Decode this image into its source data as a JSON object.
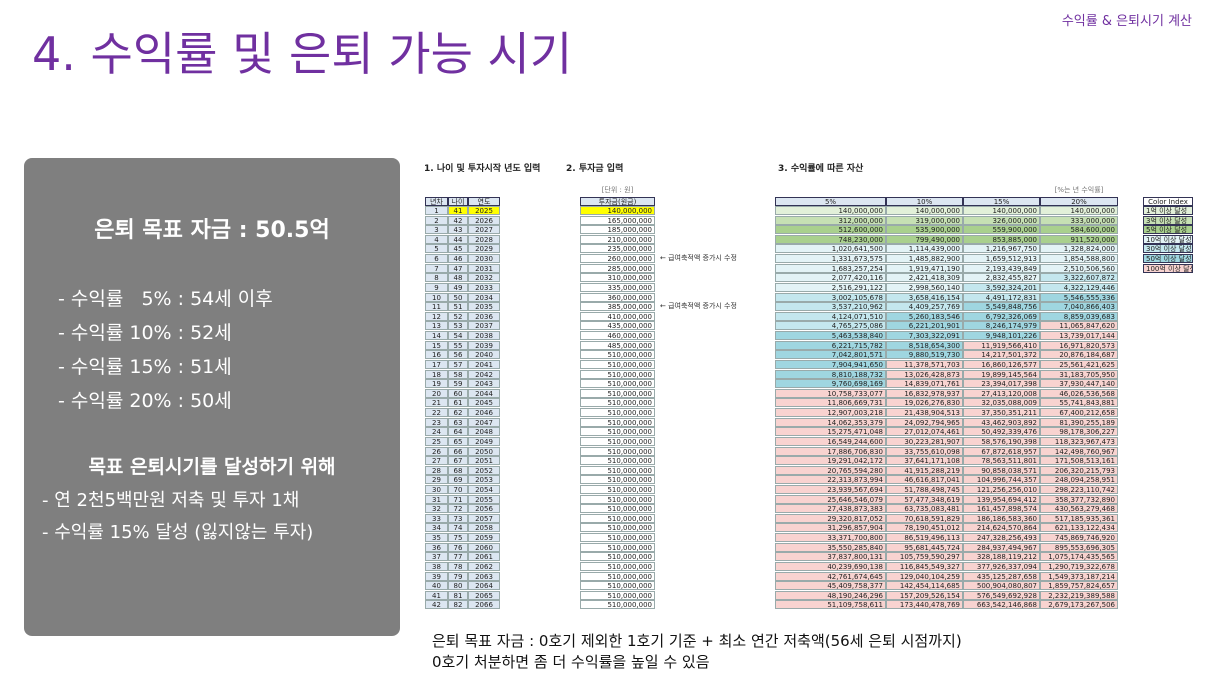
{
  "header": {
    "title": "4. 수익률 및 은퇴 가능 시기",
    "tag": "수익률 & 은퇴시기 계산"
  },
  "summary": {
    "goal": "은퇴 목표 자금 : 50.5억",
    "rates": [
      "- 수익률   5% : 54세 이후",
      "- 수익률 10% : 52세",
      "- 수익률 15% : 51세",
      "- 수익률 20% : 50세"
    ],
    "plan_title": "목표 은퇴시기를 달성하기 위해",
    "plan": [
      "- 연 2천5백만원 저축 및 투자 1채",
      "- 수익률 15% 달성 (잃지않는 투자)"
    ]
  },
  "sheet": {
    "section1": "1. 나이 및 투자시작 년도 입력",
    "section2": "2. 투자금 입력",
    "section3": "3. 수익률에 따른 자산",
    "unit_note": "[단위 : 원]",
    "rate_note": "[%는 년 수익률]",
    "columns": [
      "년차",
      "나이",
      "연도",
      "투자금(원금)",
      "5%",
      "10%",
      "15%",
      "20%"
    ],
    "rows": [
      [
        1,
        41,
        2025,
        "140,000,000",
        "140,000,000",
        "140,000,000",
        "140,000,000",
        "140,000,000"
      ],
      [
        2,
        42,
        2026,
        "165,000,000",
        "312,000,000",
        "319,000,000",
        "326,000,000",
        "333,000,000"
      ],
      [
        3,
        43,
        2027,
        "185,000,000",
        "512,600,000",
        "535,900,000",
        "559,900,000",
        "584,600,000"
      ],
      [
        4,
        44,
        2028,
        "210,000,000",
        "748,230,000",
        "799,490,000",
        "853,885,000",
        "911,520,000"
      ],
      [
        5,
        45,
        2029,
        "235,000,000",
        "1,020,641,500",
        "1,114,439,000",
        "1,216,967,750",
        "1,328,824,000"
      ],
      [
        6,
        46,
        2030,
        "260,000,000",
        "1,331,673,575",
        "1,485,882,900",
        "1,659,512,913",
        "1,854,588,800",
        "← 급여축적액 증가시 수정"
      ],
      [
        7,
        47,
        2031,
        "285,000,000",
        "1,683,257,254",
        "1,919,471,190",
        "2,193,439,849",
        "2,510,506,560"
      ],
      [
        8,
        48,
        2032,
        "310,000,000",
        "2,077,420,116",
        "2,421,418,309",
        "2,832,455,827",
        "3,322,607,872"
      ],
      [
        9,
        49,
        2033,
        "335,000,000",
        "2,516,291,122",
        "2,998,560,140",
        "3,592,324,201",
        "4,322,129,446"
      ],
      [
        10,
        50,
        2034,
        "360,000,000",
        "3,002,105,678",
        "3,658,416,154",
        "4,491,172,831",
        "5,546,555,336"
      ],
      [
        11,
        51,
        2035,
        "385,000,000",
        "3,537,210,962",
        "4,409,257,769",
        "5,549,848,756",
        "7,040,866,403",
        "← 급여축적액 증가시 수정"
      ],
      [
        12,
        52,
        2036,
        "410,000,000",
        "4,124,071,510",
        "5,260,183,546",
        "6,792,326,069",
        "8,859,039,683"
      ],
      [
        13,
        53,
        2037,
        "435,000,000",
        "4,765,275,086",
        "6,221,201,901",
        "8,246,174,979",
        "11,065,847,620"
      ],
      [
        14,
        54,
        2038,
        "460,000,000",
        "5,463,538,840",
        "7,303,322,091",
        "9,948,101,226",
        "13,739,017,144"
      ],
      [
        15,
        55,
        2039,
        "485,000,000",
        "6,221,715,782",
        "8,518,654,300",
        "11,919,566,410",
        "16,971,820,573"
      ],
      [
        16,
        56,
        2040,
        "510,000,000",
        "7,042,801,571",
        "9,880,519,730",
        "14,217,501,372",
        "20,876,184,687"
      ],
      [
        17,
        57,
        2041,
        "510,000,000",
        "7,904,941,650",
        "11,378,571,703",
        "16,860,126,577",
        "25,561,421,625"
      ],
      [
        18,
        58,
        2042,
        "510,000,000",
        "8,810,188,732",
        "13,026,428,873",
        "19,899,145,564",
        "31,183,705,950"
      ],
      [
        19,
        59,
        2043,
        "510,000,000",
        "9,760,698,169",
        "14,839,071,761",
        "23,394,017,398",
        "37,930,447,140"
      ],
      [
        20,
        60,
        2044,
        "510,000,000",
        "10,758,733,077",
        "16,832,978,937",
        "27,413,120,008",
        "46,026,536,568"
      ],
      [
        21,
        61,
        2045,
        "510,000,000",
        "11,806,669,731",
        "19,026,276,830",
        "32,035,088,009",
        "55,741,843,881"
      ],
      [
        22,
        62,
        2046,
        "510,000,000",
        "12,907,003,218",
        "21,438,904,513",
        "37,350,351,211",
        "67,400,212,658"
      ],
      [
        23,
        63,
        2047,
        "510,000,000",
        "14,062,353,379",
        "24,092,794,965",
        "43,462,903,892",
        "81,390,255,189"
      ],
      [
        24,
        64,
        2048,
        "510,000,000",
        "15,275,471,048",
        "27,012,074,461",
        "50,492,339,476",
        "98,178,306,227"
      ],
      [
        25,
        65,
        2049,
        "510,000,000",
        "16,549,244,600",
        "30,223,281,907",
        "58,576,190,398",
        "118,323,967,473"
      ],
      [
        26,
        66,
        2050,
        "510,000,000",
        "17,886,706,830",
        "33,755,610,098",
        "67,872,618,957",
        "142,498,760,967"
      ],
      [
        27,
        67,
        2051,
        "510,000,000",
        "19,291,042,172",
        "37,641,171,108",
        "78,563,511,801",
        "171,508,513,161"
      ],
      [
        28,
        68,
        2052,
        "510,000,000",
        "20,765,594,280",
        "41,915,288,219",
        "90,858,038,571",
        "206,320,215,793"
      ],
      [
        29,
        69,
        2053,
        "510,000,000",
        "22,313,873,994",
        "46,616,817,041",
        "104,996,744,357",
        "248,094,258,951"
      ],
      [
        30,
        70,
        2054,
        "510,000,000",
        "23,939,567,694",
        "51,788,498,745",
        "121,256,256,010",
        "298,223,110,742"
      ],
      [
        31,
        71,
        2055,
        "510,000,000",
        "25,646,546,079",
        "57,477,348,619",
        "139,954,694,412",
        "358,377,732,890"
      ],
      [
        32,
        72,
        2056,
        "510,000,000",
        "27,438,873,383",
        "63,735,083,481",
        "161,457,898,574",
        "430,563,279,468"
      ],
      [
        33,
        73,
        2057,
        "510,000,000",
        "29,320,817,052",
        "70,618,591,829",
        "186,186,583,360",
        "517,185,935,361"
      ],
      [
        34,
        74,
        2058,
        "510,000,000",
        "31,296,857,904",
        "78,190,451,012",
        "214,624,570,864",
        "621,133,122,434"
      ],
      [
        35,
        75,
        2059,
        "510,000,000",
        "33,371,700,800",
        "86,519,496,113",
        "247,328,256,493",
        "745,869,746,920"
      ],
      [
        36,
        76,
        2060,
        "510,000,000",
        "35,550,285,840",
        "95,681,445,724",
        "284,937,494,967",
        "895,553,696,305"
      ],
      [
        37,
        77,
        2061,
        "510,000,000",
        "37,837,800,131",
        "105,759,590,297",
        "328,188,119,212",
        "1,075,174,435,565"
      ],
      [
        38,
        78,
        2062,
        "510,000,000",
        "40,239,690,138",
        "116,845,549,327",
        "377,926,337,094",
        "1,290,719,322,678"
      ],
      [
        39,
        79,
        2063,
        "510,000,000",
        "42,761,674,645",
        "129,040,104,259",
        "435,125,287,658",
        "1,549,373,187,214"
      ],
      [
        40,
        80,
        2064,
        "510,000,000",
        "45,409,758,377",
        "142,454,114,685",
        "500,904,080,807",
        "1,859,757,824,657"
      ],
      [
        41,
        81,
        2065,
        "510,000,000",
        "48,190,246,296",
        "157,209,526,154",
        "576,549,692,928",
        "2,232,219,389,588"
      ],
      [
        42,
        82,
        2066,
        "510,000,000",
        "51,109,758,611",
        "173,440,478,769",
        "663,542,146,868",
        "2,679,173,267,506"
      ]
    ]
  },
  "color_index": {
    "title": "Color Index",
    "items": [
      {
        "value": 100000000,
        "label": "1억 이상 달성",
        "color": "#e2f0d9"
      },
      {
        "value": 300000000,
        "label": "3억 이상 달성",
        "color": "#c6e0b4"
      },
      {
        "value": 500000000,
        "label": "5억 이상 달성",
        "color": "#a9d08e"
      },
      {
        "value": 1000000000,
        "label": "10억 이상 달성",
        "color": "#e3f3f6"
      },
      {
        "value": 3000000000,
        "label": "30억 이상 달성",
        "color": "#c4e7ee"
      },
      {
        "value": 5000000000,
        "label": "50억 이상 달성",
        "color": "#9fd6e0"
      },
      {
        "value": 10000000000,
        "label": "100억 이상 달성",
        "color": "#f8d3d0"
      }
    ]
  },
  "footer": [
    "은퇴 목표 자금 : 0호기 제외한 1호기 기준 + 최소 연간 저축액(56세 은퇴 시점까지)",
    "0호기 처분하면 좀 더 수익률을 높일 수 있음"
  ]
}
